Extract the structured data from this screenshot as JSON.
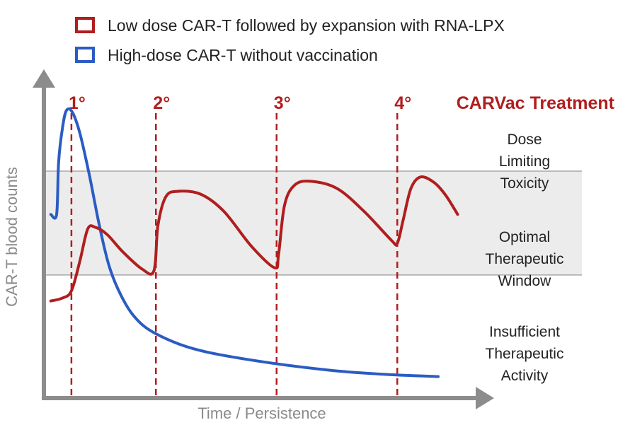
{
  "chart_data": {
    "type": "line",
    "title": "CARVac Treatment",
    "xlabel": "Time / Persistence",
    "ylabel": "CAR-T blood counts",
    "xlim": [
      0,
      10
    ],
    "ylim": [
      0,
      10
    ],
    "colors": {
      "red": "#b01e1e",
      "blue": "#2b5cc4",
      "axis": "#8c8c8c",
      "band_fill": "#ececec",
      "band_line": "#a8a8a8"
    },
    "legend": [
      {
        "label": "Low dose CAR-T followed by expansion with RNA-LPX",
        "color": "#b01e1e"
      },
      {
        "label": "High-dose CAR-T without vaccination",
        "color": "#2b5cc4"
      }
    ],
    "doses": [
      {
        "label": "1°",
        "x": 0.38
      },
      {
        "label": "2°",
        "x": 2.55
      },
      {
        "label": "3°",
        "x": 5.65
      },
      {
        "label": "4°",
        "x": 8.75
      }
    ],
    "zones": [
      {
        "lines": [
          "Dose",
          "Limiting",
          "Toxicity"
        ],
        "y": 8.5
      },
      {
        "lines": [
          "Optimal",
          "Therapeutic",
          "Window"
        ],
        "y": 5.9
      },
      {
        "lines": [
          "Insufficient",
          "Therapeutic",
          "Activity"
        ],
        "y": 1.8
      }
    ],
    "band": {
      "lower": 3.9,
      "upper": 7.5
    },
    "series": [
      {
        "name": "Low dose CAR-T followed by expansion with RNA-LPX",
        "color": "#b01e1e",
        "points": [
          [
            -0.15,
            3.0
          ],
          [
            0.15,
            3.1
          ],
          [
            0.38,
            3.35
          ],
          [
            0.6,
            4.4
          ],
          [
            0.8,
            5.5
          ],
          [
            1.0,
            5.55
          ],
          [
            1.3,
            5.3
          ],
          [
            1.7,
            4.7
          ],
          [
            2.2,
            4.1
          ],
          [
            2.5,
            4.05
          ],
          [
            2.6,
            5.6
          ],
          [
            2.8,
            6.6
          ],
          [
            3.1,
            6.8
          ],
          [
            3.7,
            6.7
          ],
          [
            4.3,
            6.1
          ],
          [
            5.0,
            4.9
          ],
          [
            5.6,
            4.15
          ],
          [
            5.7,
            4.6
          ],
          [
            5.85,
            6.3
          ],
          [
            6.1,
            7.0
          ],
          [
            6.5,
            7.15
          ],
          [
            7.2,
            6.9
          ],
          [
            7.9,
            6.1
          ],
          [
            8.6,
            5.1
          ],
          [
            8.75,
            5.0
          ],
          [
            8.9,
            5.8
          ],
          [
            9.1,
            6.9
          ],
          [
            9.35,
            7.3
          ],
          [
            9.7,
            7.1
          ],
          [
            10.0,
            6.65
          ],
          [
            10.3,
            6.0
          ]
        ]
      },
      {
        "name": "High-dose CAR-T without vaccination",
        "color": "#2b5cc4",
        "points": [
          [
            -0.15,
            6.0
          ],
          [
            0.0,
            6.0
          ],
          [
            0.05,
            7.8
          ],
          [
            0.15,
            9.0
          ],
          [
            0.25,
            9.6
          ],
          [
            0.4,
            9.55
          ],
          [
            0.6,
            8.8
          ],
          [
            0.85,
            7.3
          ],
          [
            1.1,
            5.6
          ],
          [
            1.35,
            4.2
          ],
          [
            1.65,
            3.2
          ],
          [
            2.0,
            2.45
          ],
          [
            2.5,
            1.9
          ],
          [
            3.5,
            1.35
          ],
          [
            5.0,
            0.95
          ],
          [
            7.0,
            0.6
          ],
          [
            8.5,
            0.45
          ],
          [
            9.8,
            0.38
          ]
        ]
      }
    ]
  }
}
